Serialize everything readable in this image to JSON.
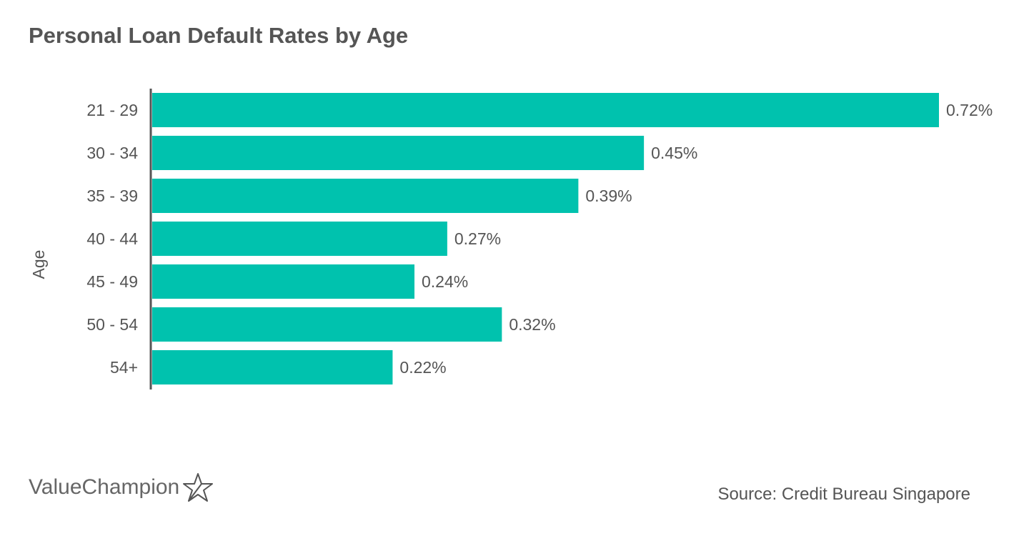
{
  "chart_data": {
    "type": "bar",
    "orientation": "horizontal",
    "title": "Personal Loan Default Rates by Age",
    "ylabel": "Age",
    "xlabel": "",
    "categories": [
      "21 - 29",
      "30 - 34",
      "35 - 39",
      "40 - 44",
      "45 - 49",
      "50 - 54",
      "54+"
    ],
    "values": [
      0.72,
      0.45,
      0.39,
      0.27,
      0.24,
      0.32,
      0.22
    ],
    "value_labels": [
      "0.72%",
      "0.45%",
      "0.39%",
      "0.27%",
      "0.24%",
      "0.32%",
      "0.22%"
    ],
    "xlim": [
      0,
      0.72
    ],
    "grid": false,
    "bar_color": "#00C2AE"
  },
  "brand": {
    "name": "ValueChampion",
    "icon": "star-outline-icon"
  },
  "source": "Source: Credit Bureau Singapore"
}
